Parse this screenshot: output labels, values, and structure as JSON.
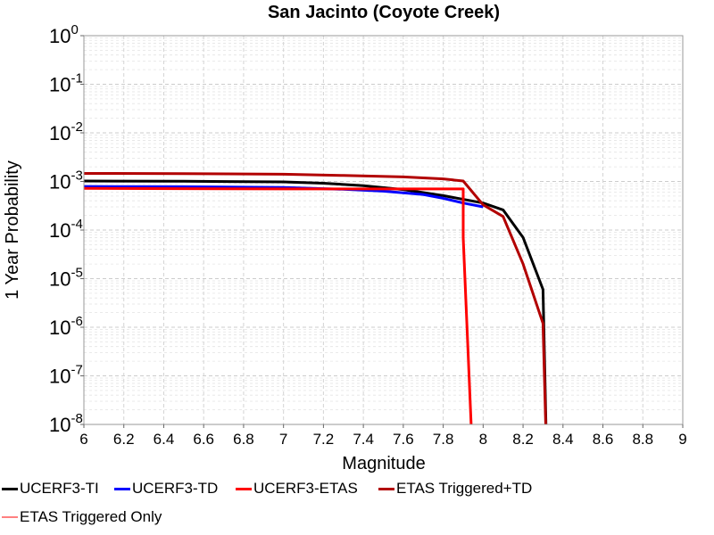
{
  "chart_data": {
    "type": "line",
    "title": "San Jacinto (Coyote Creek)",
    "xlabel": "Magnitude",
    "ylabel": "1 Year Probability",
    "xlim": [
      6,
      9
    ],
    "ylim": [
      1e-08,
      1
    ],
    "yscale": "log",
    "grid": true,
    "x_ticks": [
      "6",
      "6.2",
      "6.4",
      "6.6",
      "6.8",
      "7",
      "7.2",
      "7.4",
      "7.6",
      "7.8",
      "8",
      "8.2",
      "8.4",
      "8.6",
      "8.8",
      "9"
    ],
    "y_ticks": [
      {
        "base": "10",
        "exp": "0"
      },
      {
        "base": "10",
        "exp": "-1"
      },
      {
        "base": "10",
        "exp": "-2"
      },
      {
        "base": "10",
        "exp": "-3"
      },
      {
        "base": "10",
        "exp": "-4"
      },
      {
        "base": "10",
        "exp": "-5"
      },
      {
        "base": "10",
        "exp": "-6"
      },
      {
        "base": "10",
        "exp": "-7"
      },
      {
        "base": "10",
        "exp": "-8"
      }
    ],
    "legend_position": "bottom",
    "series": [
      {
        "name": "UCERF3-TI",
        "color": "#000000",
        "x": [
          6.0,
          6.5,
          7.0,
          7.2,
          7.4,
          7.6,
          7.8,
          8.0,
          8.1,
          8.2,
          8.3,
          8.32
        ],
        "y": [
          0.00102,
          0.00101,
          0.00098,
          0.00092,
          0.00082,
          0.00068,
          0.00051,
          0.00036,
          0.00026,
          7e-05,
          6e-06,
          1e-09
        ]
      },
      {
        "name": "UCERF3-TD",
        "color": "#0000ff",
        "x": [
          6.0,
          6.5,
          7.0,
          7.3,
          7.5,
          7.7,
          7.8,
          7.9,
          8.0
        ],
        "y": [
          0.00079,
          0.00078,
          0.00075,
          0.00069,
          0.00063,
          0.00054,
          0.00045,
          0.00036,
          0.0003
        ]
      },
      {
        "name": "UCERF3-ETAS",
        "color": "#ff0000",
        "x": [
          6.0,
          6.5,
          7.0,
          7.5,
          7.9,
          7.9,
          7.95
        ],
        "y": [
          0.00072,
          0.00071,
          0.0007,
          0.0007,
          0.0007,
          7e-05,
          1e-09
        ]
      },
      {
        "name": "ETAS Triggered+TD",
        "color": "#b20000",
        "x": [
          6.0,
          6.5,
          7.0,
          7.3,
          7.6,
          7.8,
          7.9,
          8.0,
          8.1,
          8.2,
          8.3,
          8.32
        ],
        "y": [
          0.00146,
          0.00145,
          0.00141,
          0.00133,
          0.00124,
          0.00113,
          0.00102,
          0.00033,
          0.00019,
          2e-05,
          1.2e-06,
          1e-09
        ]
      },
      {
        "name": "ETAS Triggered Only",
        "color": "#ff8080",
        "x": [],
        "y": []
      }
    ]
  }
}
